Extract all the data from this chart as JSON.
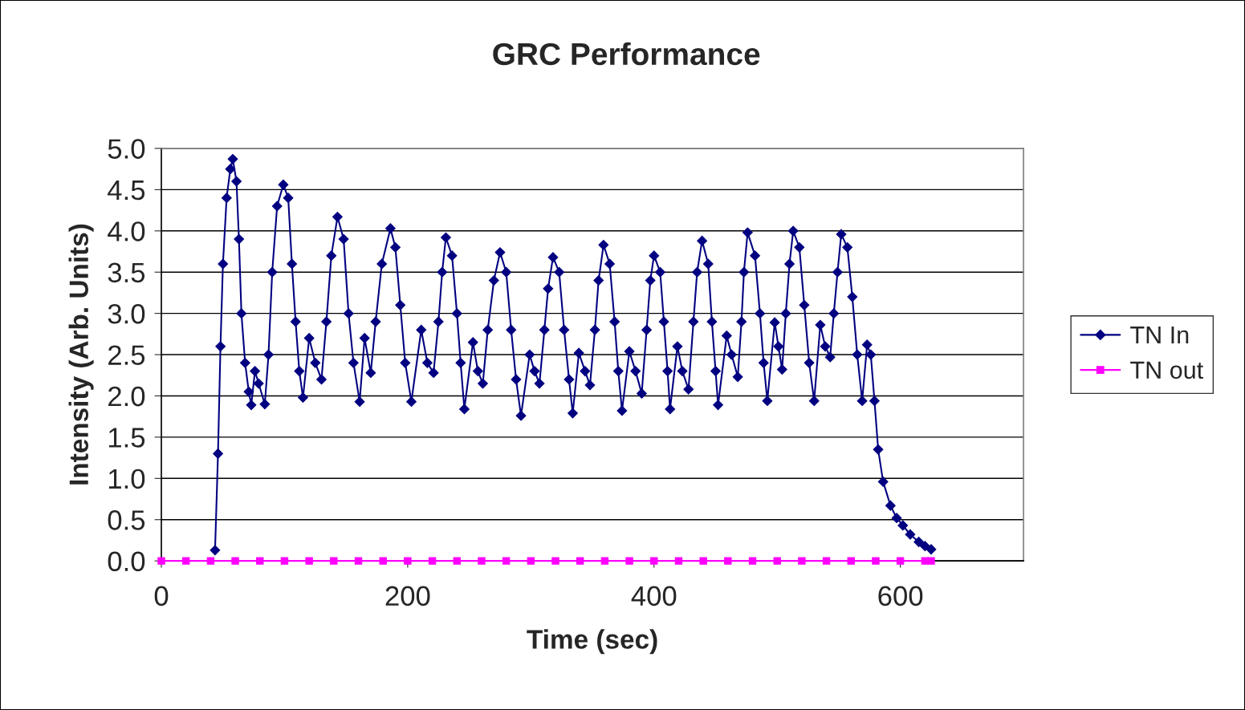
{
  "chart_data": {
    "type": "line",
    "title": "GRC Performance",
    "xlabel": "Time (sec)",
    "ylabel": "Intensity (Arb. Units)",
    "xlim": [
      0,
      700
    ],
    "xticks": [
      0,
      200,
      400,
      600
    ],
    "ylim": [
      0,
      5.0
    ],
    "yticks": [
      {
        "value": 0,
        "label": "0.0"
      },
      {
        "value": 0.5,
        "label": "0.5"
      },
      {
        "value": 1.0,
        "label": "1.0"
      },
      {
        "value": 1.5,
        "label": "1.5"
      },
      {
        "value": 2.0,
        "label": "2.0"
      },
      {
        "value": 2.5,
        "label": "2.5"
      },
      {
        "value": 3.0,
        "label": "3.0"
      },
      {
        "value": 3.5,
        "label": "3.5"
      },
      {
        "value": 4.0,
        "label": "4.0"
      },
      {
        "value": 4.5,
        "label": "4.5"
      },
      {
        "value": 5.0,
        "label": "5.0"
      }
    ],
    "grid": "y",
    "legend": "right",
    "series": [
      {
        "name": "TN In",
        "color": "#000080",
        "marker": "diamond",
        "x": [
          43.6,
          46,
          48,
          50,
          53,
          56,
          58,
          61,
          63,
          65,
          68,
          71,
          73,
          76,
          79,
          84,
          87,
          90,
          94,
          99,
          103,
          106,
          109,
          112,
          115,
          120,
          125,
          130,
          134,
          138,
          143,
          148,
          152,
          156,
          161,
          165,
          170,
          174,
          179,
          186,
          190,
          194,
          198,
          203,
          211,
          216,
          221,
          225,
          228,
          231,
          236,
          240,
          243,
          246,
          253,
          257,
          261,
          265,
          270,
          275,
          280,
          284,
          288,
          292,
          299,
          303,
          307,
          311,
          314,
          318,
          323,
          327,
          331,
          334,
          339,
          344,
          348,
          352,
          355,
          359,
          364,
          368,
          371,
          374,
          380,
          385,
          390,
          394,
          397,
          400,
          405,
          408,
          411,
          413,
          419,
          423,
          428,
          432,
          435,
          439,
          444,
          447,
          450,
          452,
          459,
          463,
          468,
          471,
          473,
          476,
          482,
          486,
          489,
          492,
          498,
          501,
          504,
          507,
          510,
          513,
          518,
          522,
          526,
          530,
          535,
          539,
          543,
          546,
          549,
          552,
          557,
          561,
          565,
          569,
          573,
          576,
          579,
          582,
          586,
          592,
          597,
          602,
          608,
          615,
          620,
          625
        ],
        "values": [
          0.13,
          1.3,
          2.6,
          3.6,
          4.4,
          4.75,
          4.87,
          4.6,
          3.9,
          3.0,
          2.4,
          2.05,
          1.89,
          2.3,
          2.15,
          1.9,
          2.5,
          3.5,
          4.3,
          4.56,
          4.4,
          3.6,
          2.9,
          2.3,
          1.98,
          2.7,
          2.4,
          2.2,
          2.9,
          3.7,
          4.17,
          3.9,
          3.0,
          2.4,
          1.93,
          2.7,
          2.28,
          2.9,
          3.6,
          4.03,
          3.8,
          3.1,
          2.4,
          1.93,
          2.8,
          2.4,
          2.28,
          2.9,
          3.5,
          3.92,
          3.7,
          3.0,
          2.4,
          1.84,
          2.65,
          2.3,
          2.15,
          2.8,
          3.4,
          3.74,
          3.5,
          2.8,
          2.2,
          1.76,
          2.5,
          2.3,
          2.15,
          2.8,
          3.3,
          3.68,
          3.5,
          2.8,
          2.2,
          1.79,
          2.52,
          2.3,
          2.13,
          2.8,
          3.4,
          3.83,
          3.6,
          2.9,
          2.3,
          1.82,
          2.54,
          2.3,
          2.03,
          2.8,
          3.4,
          3.7,
          3.5,
          2.9,
          2.3,
          1.84,
          2.6,
          2.3,
          2.08,
          2.9,
          3.5,
          3.88,
          3.6,
          2.9,
          2.3,
          1.89,
          2.73,
          2.5,
          2.23,
          2.9,
          3.5,
          3.98,
          3.7,
          3.0,
          2.4,
          1.94,
          2.89,
          2.6,
          2.32,
          3.0,
          3.6,
          4.0,
          3.8,
          3.1,
          2.4,
          1.94,
          2.86,
          2.6,
          2.47,
          3.0,
          3.5,
          3.96,
          3.8,
          3.2,
          2.5,
          1.94,
          2.62,
          2.5,
          1.94,
          1.35,
          0.96,
          0.67,
          0.52,
          0.43,
          0.32,
          0.23,
          0.18,
          0.14
        ]
      },
      {
        "name": "TN out",
        "color": "#ff00ff",
        "marker": "square",
        "x": [
          0,
          20,
          40,
          60,
          80,
          100,
          120,
          140,
          160,
          180,
          200,
          220,
          240,
          260,
          280,
          300,
          320,
          340,
          360,
          380,
          400,
          420,
          440,
          460,
          480,
          500,
          520,
          540,
          560,
          580,
          600,
          620,
          625
        ],
        "values": [
          0,
          0,
          0,
          0,
          0,
          0,
          0,
          0,
          0,
          0,
          0,
          0,
          0,
          0,
          0,
          0,
          0,
          0,
          0,
          0,
          0,
          0,
          0,
          0,
          0,
          0,
          0,
          0,
          0,
          0,
          0,
          0,
          0
        ]
      }
    ]
  }
}
